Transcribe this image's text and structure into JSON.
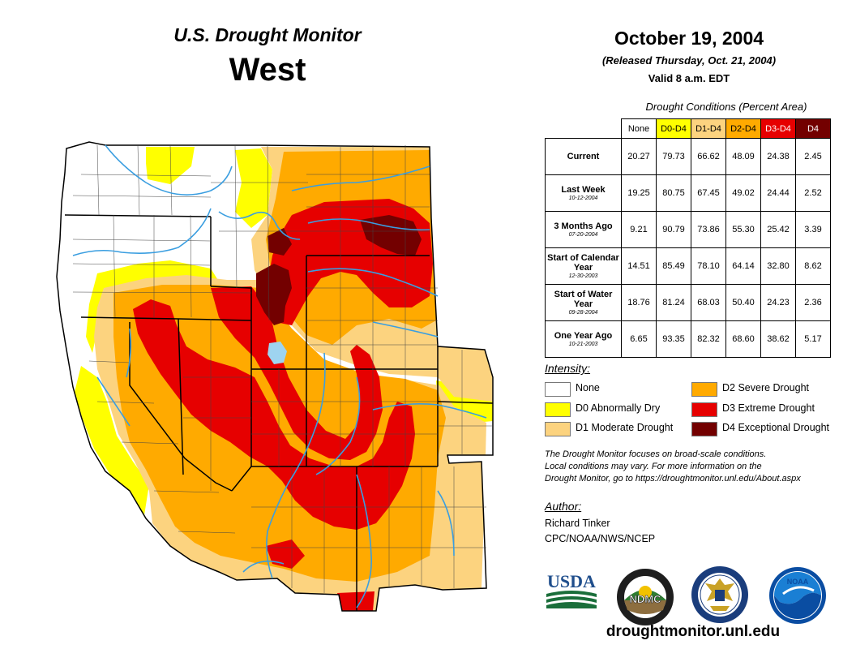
{
  "header": {
    "brand": "U.S. Drought Monitor",
    "region": "West",
    "date": "October 19, 2004",
    "released": "(Released Thursday, Oct. 21, 2004)",
    "valid": "Valid 8 a.m. EDT"
  },
  "table": {
    "caption": "Drought Conditions (Percent Area)",
    "columns": [
      {
        "label": "None",
        "color": "#ffffff",
        "text_color": "#000000"
      },
      {
        "label": "D0-D4",
        "color": "#ffff00",
        "text_color": "#000000"
      },
      {
        "label": "D1-D4",
        "color": "#fcd37f",
        "text_color": "#000000"
      },
      {
        "label": "D2-D4",
        "color": "#ffaa00",
        "text_color": "#000000"
      },
      {
        "label": "D3-D4",
        "color": "#e60000",
        "text_color": "#ffffff"
      },
      {
        "label": "D4",
        "color": "#730000",
        "text_color": "#ffffff"
      }
    ],
    "rows": [
      {
        "label": "Current",
        "date": "",
        "values": [
          "20.27",
          "79.73",
          "66.62",
          "48.09",
          "24.38",
          "2.45"
        ]
      },
      {
        "label": "Last Week",
        "date": "10-12-2004",
        "values": [
          "19.25",
          "80.75",
          "67.45",
          "49.02",
          "24.44",
          "2.52"
        ]
      },
      {
        "label": "3 Months Ago",
        "date": "07-20-2004",
        "values": [
          "9.21",
          "90.79",
          "73.86",
          "55.30",
          "25.42",
          "3.39"
        ]
      },
      {
        "label": "Start of Calendar Year",
        "date": "12-30-2003",
        "values": [
          "14.51",
          "85.49",
          "78.10",
          "64.14",
          "32.80",
          "8.62"
        ]
      },
      {
        "label": "Start of Water Year",
        "date": "09-28-2004",
        "values": [
          "18.76",
          "81.24",
          "68.03",
          "50.40",
          "24.23",
          "2.36"
        ]
      },
      {
        "label": "One Year Ago",
        "date": "10-21-2003",
        "values": [
          "6.65",
          "93.35",
          "82.32",
          "68.60",
          "38.62",
          "5.17"
        ]
      }
    ]
  },
  "legend": {
    "title": "Intensity:",
    "items": [
      {
        "label": "None",
        "color": "#ffffff"
      },
      {
        "label": "D0 Abnormally Dry",
        "color": "#ffff00"
      },
      {
        "label": "D1 Moderate Drought",
        "color": "#fcd37f"
      },
      {
        "label": "D2 Severe Drought",
        "color": "#ffaa00"
      },
      {
        "label": "D3 Extreme Drought",
        "color": "#e60000"
      },
      {
        "label": "D4 Exceptional Drought",
        "color": "#730000"
      }
    ]
  },
  "note": {
    "line1": "The Drought Monitor focuses on broad-scale conditions.",
    "line2": "Local conditions may vary. For more information on the",
    "line3": "Drought Monitor, go to https://droughtmonitor.unl.edu/About.aspx"
  },
  "author": {
    "title": "Author:",
    "name": "Richard Tinker",
    "org": "CPC/NOAA/NWS/NCEP"
  },
  "logos": {
    "usda": "USDA",
    "ndmc": "NDMC",
    "noaa": "NOAA"
  },
  "website": "droughtmonitor.unl.edu"
}
